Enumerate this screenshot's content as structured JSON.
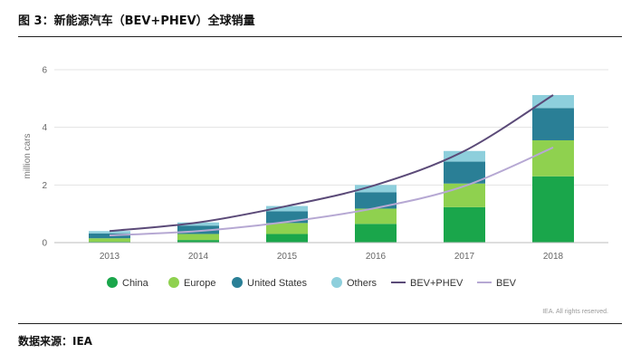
{
  "header": {
    "title": "图 3：新能源汽车（BEV+PHEV）全球销量"
  },
  "footer": {
    "source": "数据来源：IEA"
  },
  "chart_data": {
    "type": "bar",
    "stacked": true,
    "categories": [
      "2013",
      "2014",
      "2015",
      "2016",
      "2017",
      "2018"
    ],
    "series": [
      {
        "name": "China",
        "color": "#1aa64b",
        "values": [
          0.03,
          0.09,
          0.3,
          0.65,
          1.23,
          2.3
        ]
      },
      {
        "name": "Europe",
        "color": "#8fd14f",
        "values": [
          0.12,
          0.21,
          0.38,
          0.53,
          0.82,
          1.25
        ]
      },
      {
        "name": "United States",
        "color": "#2a7f96",
        "values": [
          0.17,
          0.29,
          0.41,
          0.57,
          0.76,
          1.12
        ]
      },
      {
        "name": "Others",
        "color": "#8ecfdc",
        "values": [
          0.08,
          0.11,
          0.18,
          0.25,
          0.37,
          0.45
        ]
      }
    ],
    "lines": [
      {
        "name": "BEV+PHEV",
        "color": "#5b4a78",
        "values": [
          0.4,
          0.7,
          1.27,
          2.0,
          3.18,
          5.12
        ]
      },
      {
        "name": "BEV",
        "color": "#b6a8d3",
        "values": [
          0.25,
          0.4,
          0.72,
          1.2,
          1.96,
          3.3
        ]
      }
    ],
    "ylabel": "million cars",
    "xlabel": "",
    "ylim": [
      0,
      6
    ],
    "yticks": [
      "0",
      "2",
      "4",
      "6"
    ],
    "grid": true,
    "legend_position": "bottom",
    "credit": "IEA. All rights reserved."
  }
}
